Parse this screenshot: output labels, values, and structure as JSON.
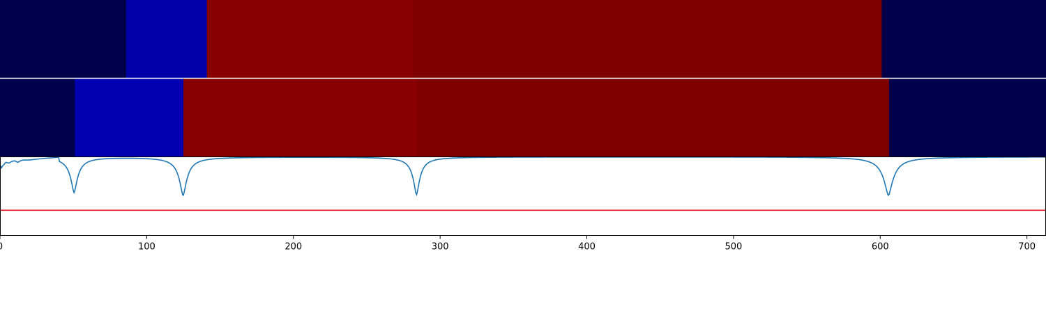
{
  "chart_data": [
    {
      "type": "heatmap",
      "panel": "top",
      "xlim": [
        0,
        713
      ],
      "segments": [
        {
          "start": 0,
          "end": 86,
          "color": "#00004b"
        },
        {
          "start": 86,
          "end": 141,
          "color": "#0000a8"
        },
        {
          "start": 141,
          "end": 281,
          "color": "#880000"
        },
        {
          "start": 281,
          "end": 601,
          "color": "#7f0000"
        },
        {
          "start": 601,
          "end": 713,
          "color": "#00004b"
        }
      ]
    },
    {
      "type": "heatmap",
      "panel": "middle",
      "xlim": [
        0,
        713
      ],
      "segments": [
        {
          "start": 0,
          "end": 51,
          "color": "#00004b"
        },
        {
          "start": 51,
          "end": 125,
          "color": "#0000b0"
        },
        {
          "start": 125,
          "end": 284,
          "color": "#880000"
        },
        {
          "start": 284,
          "end": 606,
          "color": "#7f0000"
        },
        {
          "start": 606,
          "end": 713,
          "color": "#00004b"
        }
      ]
    },
    {
      "type": "line",
      "panel": "bottom",
      "xlim": [
        0,
        713
      ],
      "ylim": [
        0,
        1
      ],
      "xticks": [
        0,
        100,
        200,
        300,
        400,
        500,
        600,
        700
      ],
      "threshold": 0.32,
      "threshold_color": "#e31a1c",
      "series_color": "#1f77b4",
      "baseline": 1.0,
      "start_points": [
        [
          0,
          0.9
        ],
        [
          1,
          0.86
        ],
        [
          2,
          0.89
        ],
        [
          4,
          0.93
        ],
        [
          6,
          0.92
        ],
        [
          8,
          0.94
        ],
        [
          10,
          0.95
        ],
        [
          12,
          0.93
        ],
        [
          14,
          0.95
        ],
        [
          16,
          0.96
        ],
        [
          20,
          0.96
        ],
        [
          25,
          0.97
        ],
        [
          30,
          0.98
        ],
        [
          40,
          0.995
        ]
      ],
      "dips": [
        {
          "center": 50.5,
          "depth": 0.45,
          "width": 3.0
        },
        {
          "center": 124.8,
          "depth": 0.49,
          "width": 3.2
        },
        {
          "center": 283.9,
          "depth": 0.48,
          "width": 2.8
        },
        {
          "center": 605.6,
          "depth": 0.49,
          "width": 4.0
        }
      ]
    }
  ]
}
